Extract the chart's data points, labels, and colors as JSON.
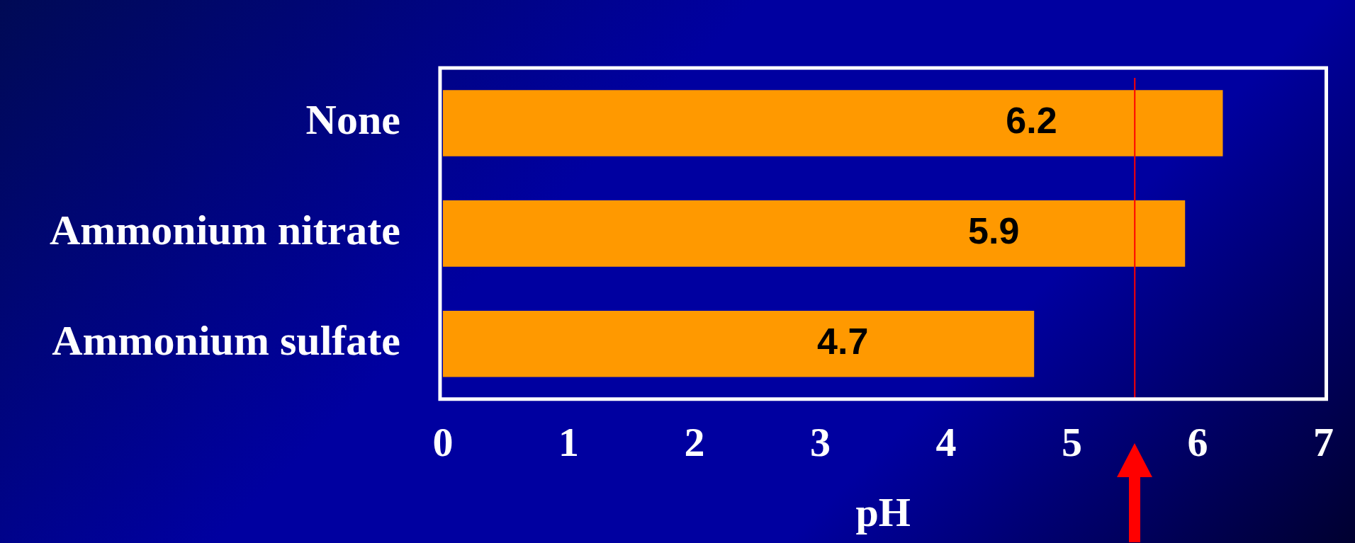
{
  "chart_data": {
    "type": "bar",
    "orientation": "horizontal",
    "xlabel": "pH",
    "categories": [
      "None",
      "Ammonium nitrate",
      "Ammonium sulfate"
    ],
    "values": [
      6.2,
      5.9,
      4.7
    ],
    "color": "#ff9900",
    "data_labels": true,
    "xlim": [
      0,
      7
    ],
    "xticks": [
      0,
      1,
      2,
      3,
      4,
      5,
      6,
      7
    ],
    "grid": false,
    "legend": false,
    "ref_lines": [
      {
        "axis": "x",
        "value": 5.5,
        "color": "#ff0000"
      }
    ]
  }
}
